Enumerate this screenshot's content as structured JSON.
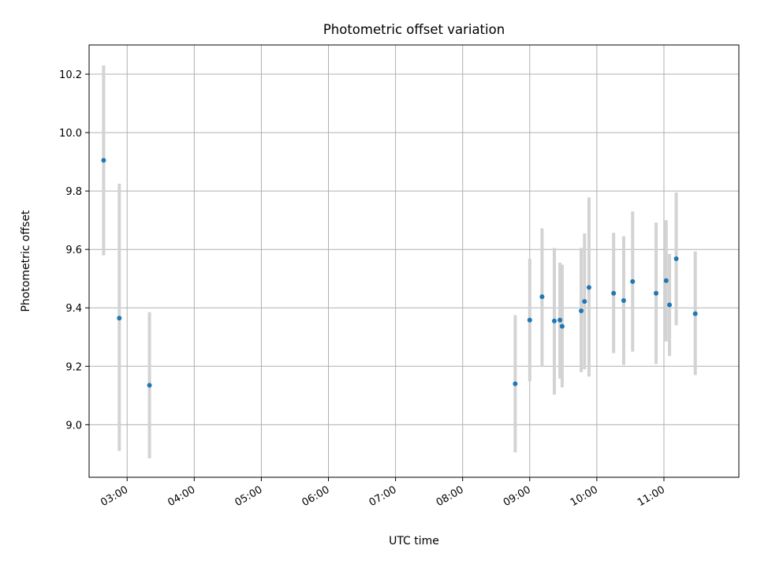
{
  "chart_data": {
    "type": "scatter",
    "title": "Photometric offset variation",
    "xlabel": "UTC time",
    "ylabel": "Photometric offset",
    "x_axis": {
      "kind": "time",
      "range": [
        "02:26",
        "12:07"
      ],
      "ticks": [
        "03:00",
        "04:00",
        "05:00",
        "06:00",
        "07:00",
        "08:00",
        "09:00",
        "10:00",
        "11:00"
      ]
    },
    "y_axis": {
      "range": [
        8.82,
        10.3
      ],
      "ticks": [
        9.0,
        9.2,
        9.4,
        9.6,
        9.8,
        10.0,
        10.2
      ],
      "tick_labels": [
        "9.0",
        "9.2",
        "9.4",
        "9.6",
        "9.8",
        "10.0",
        "10.2"
      ]
    },
    "grid": true,
    "legend": "none",
    "colors": {
      "point": "#1f77b4",
      "errorbar": "#d3d3d3",
      "grid": "#b0b0b0"
    },
    "series": [
      {
        "points": [
          {
            "x": "02:39",
            "y": 9.905,
            "err_low": 9.58,
            "err_high": 10.23
          },
          {
            "x": "02:53",
            "y": 9.365,
            "err_low": 8.91,
            "err_high": 9.825
          },
          {
            "x": "03:20",
            "y": 9.135,
            "err_low": 8.885,
            "err_high": 9.385
          },
          {
            "x": "08:47",
            "y": 9.14,
            "err_low": 8.905,
            "err_high": 9.375
          },
          {
            "x": "09:00",
            "y": 9.358,
            "err_low": 9.148,
            "err_high": 9.568
          },
          {
            "x": "09:11",
            "y": 9.438,
            "err_low": 9.2,
            "err_high": 9.672
          },
          {
            "x": "09:22",
            "y": 9.355,
            "err_low": 9.103,
            "err_high": 9.605
          },
          {
            "x": "09:27",
            "y": 9.358,
            "err_low": 9.158,
            "err_high": 9.555
          },
          {
            "x": "09:29",
            "y": 9.337,
            "err_low": 9.128,
            "err_high": 9.548
          },
          {
            "x": "09:46",
            "y": 9.39,
            "err_low": 9.18,
            "err_high": 9.605
          },
          {
            "x": "09:49",
            "y": 9.422,
            "err_low": 9.19,
            "err_high": 9.655
          },
          {
            "x": "09:53",
            "y": 9.47,
            "err_low": 9.165,
            "err_high": 9.778
          },
          {
            "x": "10:15",
            "y": 9.45,
            "err_low": 9.245,
            "err_high": 9.657
          },
          {
            "x": "10:24",
            "y": 9.425,
            "err_low": 9.205,
            "err_high": 9.645
          },
          {
            "x": "10:32",
            "y": 9.49,
            "err_low": 9.25,
            "err_high": 9.73
          },
          {
            "x": "10:53",
            "y": 9.45,
            "err_low": 9.208,
            "err_high": 9.692
          },
          {
            "x": "11:02",
            "y": 9.493,
            "err_low": 9.285,
            "err_high": 9.7
          },
          {
            "x": "11:05",
            "y": 9.41,
            "err_low": 9.235,
            "err_high": 9.585
          },
          {
            "x": "11:11",
            "y": 9.568,
            "err_low": 9.34,
            "err_high": 9.795
          },
          {
            "x": "11:28",
            "y": 9.38,
            "err_low": 9.17,
            "err_high": 9.593
          }
        ]
      }
    ]
  }
}
